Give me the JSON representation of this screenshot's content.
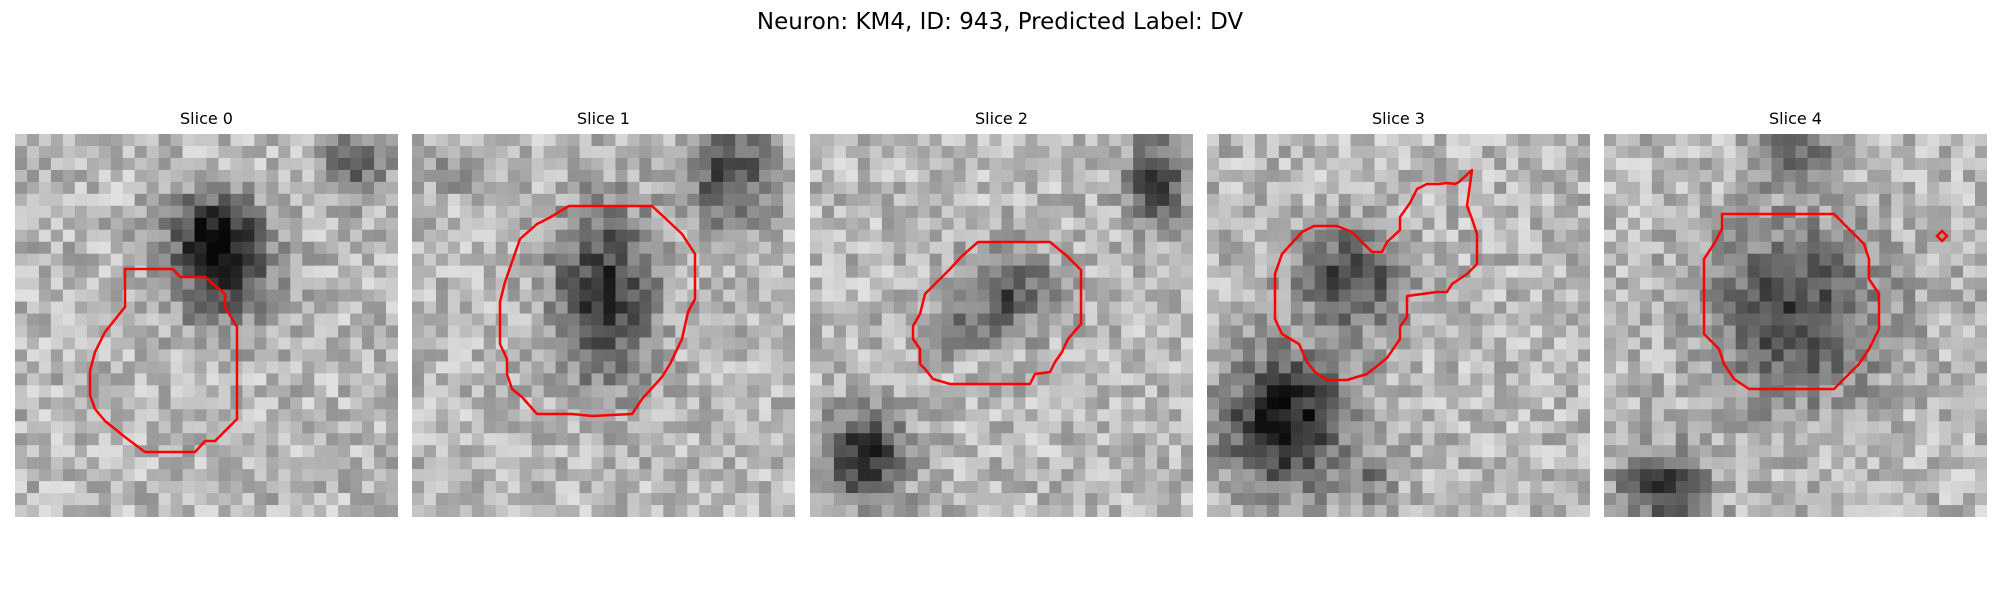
{
  "figure": {
    "title": "Neuron: KM4, ID: 943, Predicted Label: DV"
  },
  "colors": {
    "contour": "#ff0000",
    "background": "#ffffff"
  },
  "panels": [
    {
      "title": "Slice 0",
      "image": "grayscale-microscopy-slice",
      "overlay": "red-contour"
    },
    {
      "title": "Slice 1",
      "image": "grayscale-microscopy-slice",
      "overlay": "red-contour"
    },
    {
      "title": "Slice 2",
      "image": "grayscale-microscopy-slice",
      "overlay": "red-contour"
    },
    {
      "title": "Slice 3",
      "image": "grayscale-microscopy-slice",
      "overlay": "red-contour"
    },
    {
      "title": "Slice 4",
      "image": "grayscale-microscopy-slice",
      "overlay": "red-contour"
    }
  ]
}
